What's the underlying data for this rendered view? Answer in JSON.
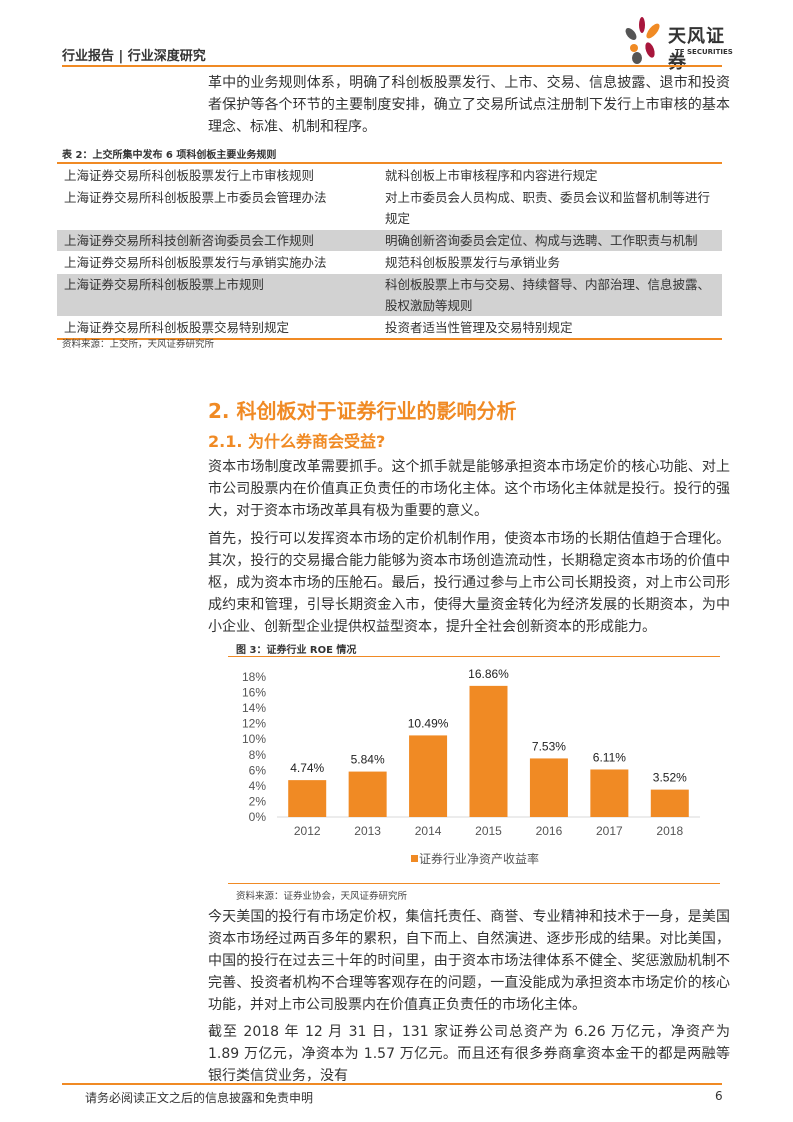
{
  "header": {
    "title": "行业报告 | 行业深度研究",
    "logo_cn": "天风证券",
    "logo_en": "TF SECURITIES"
  },
  "intro_paragraph": "革中的业务规则体系，明确了科创板股票发行、上市、交易、信息披露、退市和投资者保护等各个环节的主要制度安排，确立了交易所试点注册制下发行上市审核的基本理念、标准、机制和程序。",
  "table": {
    "caption": "表 2：上交所集中发布 6 项科创板主要业务规则",
    "rows": [
      {
        "name": "上海证券交易所科创板股票发行上市审核规则",
        "desc": "就科创板上市审核程序和内容进行规定",
        "shaded": false
      },
      {
        "name": "上海证券交易所科创板股票上市委员会管理办法",
        "desc": "对上市委员会人员构成、职责、委员会议和监督机制等进行规定",
        "shaded": false
      },
      {
        "name": "上海证券交易所科技创新咨询委员会工作规则",
        "desc": "明确创新咨询委员会定位、构成与选聘、工作职责与机制",
        "shaded": true
      },
      {
        "name": "上海证券交易所科创板股票发行与承销实施办法",
        "desc": "规范科创板股票发行与承销业务",
        "shaded": false
      },
      {
        "name": "上海证券交易所科创板股票上市规则",
        "desc": "科创板股票上市与交易、持续督导、内部治理、信息披露、股权激励等规则",
        "shaded": true
      },
      {
        "name": "上海证券交易所科创板股票交易特别规定",
        "desc": "投资者适当性管理及交易特别规定",
        "shaded": false
      }
    ],
    "source": "资料来源：上交所，天风证券研究所"
  },
  "section": {
    "h2": "2. 科创板对于证券行业的影响分析",
    "h3": "2.1. 为什么券商会受益?"
  },
  "paragraphs": [
    "资本市场制度改革需要抓手。这个抓手就是能够承担资本市场定价的核心功能、对上市公司股票内在价值真正负责任的市场化主体。这个市场化主体就是投行。投行的强大，对于资本市场改革具有极为重要的意义。",
    "首先，投行可以发挥资本市场的定价机制作用，使资本市场的长期估值趋于合理化。其次，投行的交易撮合能力能够为资本市场创造流动性，长期稳定资本市场的价值中枢，成为资本市场的压舱石。最后，投行通过参与上市公司长期投资，对上市公司形成约束和管理，引导长期资金入市，使得大量资金转化为经济发展的长期资本，为中小企业、创新型企业提供权益型资本，提升全社会创新资本的形成能力。",
    "今天美国的投行有市场定价权，集信托责任、商誉、专业精神和技术于一身，是美国资本市场经过两百多年的累积，自下而上、自然演进、逐步形成的结果。对比美国，中国的投行在过去三十年的时间里，由于资本市场法律体系不健全、奖惩激励机制不完善、投资者机构不合理等客观存在的问题，一直没能成为承担资本市场定价的核心功能，并对上市公司股票内在价值真正负责任的市场化主体。",
    "截至 2018 年 12 月 31 日，131 家证券公司总资产为 6.26 万亿元，净资产为 1.89 万亿元，净资本为 1.57 万亿元。而且还有很多券商拿资本金干的都是两融等银行类信贷业务，没有"
  ],
  "figure": {
    "caption": "图 3：证券行业 ROE 情况",
    "source": "资料来源：证券业协会，天风证券研究所"
  },
  "chart_data": {
    "type": "bar",
    "categories": [
      "2012",
      "2013",
      "2014",
      "2015",
      "2016",
      "2017",
      "2018"
    ],
    "series": [
      {
        "name": "证券行业净资产收益率",
        "values": [
          4.74,
          5.84,
          10.49,
          16.86,
          7.53,
          6.11,
          3.52
        ]
      }
    ],
    "data_labels": [
      "4.74%",
      "5.84%",
      "10.49%",
      "16.86%",
      "7.53%",
      "6.11%",
      "3.52%"
    ],
    "yticks": [
      "0%",
      "2%",
      "4%",
      "6%",
      "8%",
      "10%",
      "12%",
      "14%",
      "16%",
      "18%"
    ],
    "ylim": [
      0,
      18
    ],
    "grid": false,
    "legend": "bottom",
    "color": "#f08a24"
  },
  "footer": {
    "disclaimer": "请务必阅读正文之后的信息披露和免责申明",
    "page": "6"
  }
}
